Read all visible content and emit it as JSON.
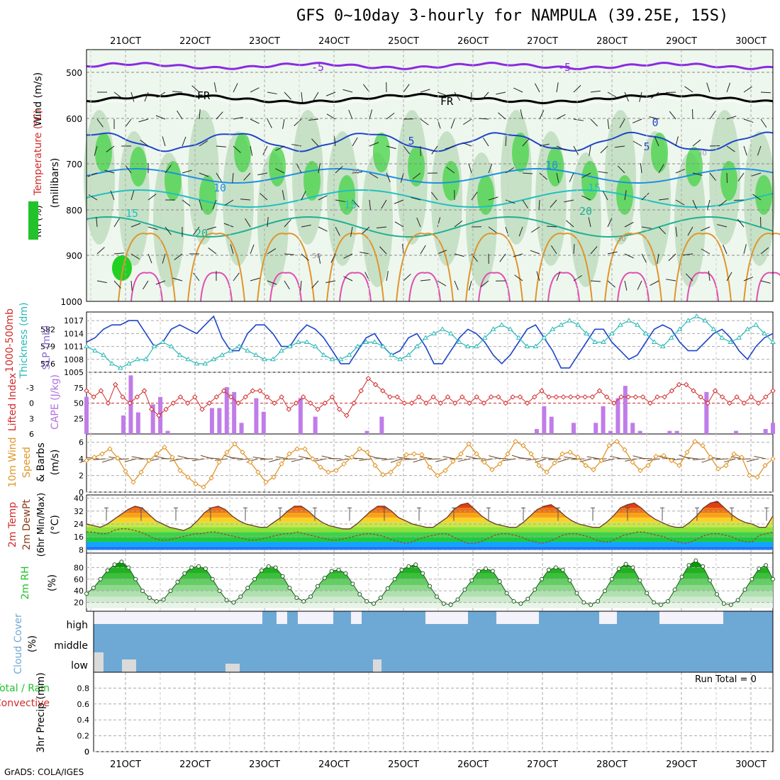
{
  "title": "GFS 0~10day 3-hourly for NAMPULA (39.25E, 15S)",
  "credit": "GrADS: COLA/IGES",
  "dates": [
    "21OCT",
    "22OCT",
    "23OCT",
    "24OCT",
    "25OCT",
    "26OCT",
    "27OCT",
    "28OCT",
    "29OCT",
    "30OCT"
  ],
  "labels": {
    "p1_wind": "Wind (m/s)",
    "p1_temp": "Temperature (°C)",
    "p1_rh": "RH (%)",
    "p1_mb": "(millibars)",
    "p2_thick": "1000-500mb",
    "p2_thick2": "Thickness (dm)",
    "p2_slp": "SLP (mb)",
    "p3_li": "Lifted Index",
    "p3_cape": "CAPE (J/kg)",
    "p4_wind": "10m Wind",
    "p4_speed": "Speed",
    "p4_barbs": "& Barbs",
    "p4_unit": "(m/s)",
    "p5_t1": "2m Temp",
    "p5_t2": "2m DewPt",
    "p5_t3": "(6hr Min/Max)",
    "p5_unit": "(°C)",
    "p6_rh": "2m RH",
    "p6_unit": "(%)",
    "p7_cloud": "Cloud Cover",
    "p7_unit": "(%)",
    "p7_high": "high",
    "p7_middle": "middle",
    "p7_low": "low",
    "p8_a": "Total / Rain",
    "p8_b": "Convective",
    "p8_c": "3hr Precip (mm)",
    "run_total": "Run Total = 0"
  },
  "colors": {
    "purple": "#8a2be2",
    "blue": "#1e46c8",
    "cyan": "#2ab8b8",
    "orange": "#e0952a",
    "green": "#22c22a",
    "cloud": "#6ea9d6",
    "red": "#d12a2a"
  },
  "chart_data": [
    {
      "panel": "vertical profile",
      "type": "contour",
      "yaxis": {
        "label": "(millibars)",
        "ticks": [
          500,
          600,
          700,
          800,
          900,
          1000
        ]
      },
      "isotherm_labels": [
        "-5",
        "FR",
        "0",
        "5",
        "10",
        "15",
        "20"
      ],
      "rh_labels": [
        "30",
        "50"
      ]
    },
    {
      "panel": "thickness_slp",
      "type": "line",
      "thickness_ticks": [
        576,
        579,
        582
      ],
      "slp_ticks": [
        1005,
        1008,
        1011,
        1014,
        1017
      ],
      "ylim": [
        1005,
        1019
      ],
      "slp": [
        1012,
        1013,
        1015,
        1016,
        1016,
        1017,
        1017,
        1014,
        1011,
        1012,
        1015,
        1016,
        1015,
        1014,
        1016,
        1018,
        1013,
        1010,
        1010,
        1014,
        1016,
        1016,
        1014,
        1011,
        1011,
        1014,
        1016,
        1015,
        1013,
        1010,
        1007,
        1007,
        1010,
        1013,
        1014,
        1011,
        1009,
        1010,
        1013,
        1014,
        1011,
        1007,
        1007,
        1010,
        1013,
        1015,
        1014,
        1012,
        1009,
        1007,
        1009,
        1012,
        1015,
        1016,
        1013,
        1010,
        1006,
        1006,
        1009,
        1012,
        1015,
        1015,
        1012,
        1010,
        1008,
        1009,
        1012,
        1015,
        1016,
        1015,
        1012,
        1010,
        1010,
        1012,
        1014,
        1015,
        1013,
        1010,
        1008,
        1011,
        1013,
        1014
      ],
      "thickness_slp_scale": [
        1011,
        1010,
        1009,
        1007,
        1006,
        1007,
        1008,
        1008,
        1011,
        1012,
        1011,
        1009,
        1008,
        1007,
        1007,
        1008,
        1009,
        1010,
        1011,
        1010,
        1009,
        1008,
        1008,
        1010,
        1011,
        1012,
        1012,
        1011,
        1009,
        1008,
        1008,
        1009,
        1011,
        1012,
        1012,
        1011,
        1009,
        1008,
        1009,
        1011,
        1013,
        1014,
        1015,
        1014,
        1012,
        1011,
        1011,
        1013,
        1015,
        1016,
        1015,
        1013,
        1011,
        1011,
        1013,
        1015,
        1016,
        1017,
        1016,
        1014,
        1012,
        1012,
        1014,
        1016,
        1017,
        1016,
        1014,
        1012,
        1011,
        1013,
        1015,
        1017,
        1018,
        1017,
        1015,
        1013,
        1012,
        1013,
        1015,
        1016,
        1014,
        1012
      ]
    },
    {
      "panel": "cape_li",
      "type": "bar",
      "cape_ticks": [
        25,
        50,
        75
      ],
      "li_ticks": [
        -3,
        0,
        3,
        6
      ],
      "cape": [
        60,
        0,
        0,
        0,
        0,
        30,
        95,
        35,
        0,
        48,
        60,
        5,
        0,
        0,
        0,
        0,
        0,
        42,
        42,
        76,
        68,
        18,
        0,
        58,
        36,
        0,
        0,
        0,
        0,
        58,
        0,
        28,
        0,
        0,
        0,
        0,
        0,
        0,
        5,
        0,
        28,
        0,
        0,
        0,
        0,
        0,
        0,
        0,
        0,
        0,
        0,
        0,
        0,
        0,
        0,
        0,
        0,
        0,
        0,
        0,
        0,
        8,
        45,
        28,
        0,
        0,
        18,
        0,
        0,
        18,
        45,
        5,
        58,
        78,
        18,
        5,
        0,
        0,
        0,
        5,
        5,
        0,
        0,
        0,
        68,
        0,
        0,
        0,
        5,
        0,
        0,
        0,
        8,
        18
      ],
      "li": [
        2,
        3,
        2,
        4,
        1,
        3,
        4,
        3,
        2,
        5,
        6,
        5,
        4,
        3,
        4,
        3,
        5,
        4,
        3,
        2,
        3,
        4,
        3,
        2,
        2,
        3,
        4,
        3,
        5,
        4,
        3,
        4,
        5,
        4,
        3,
        5,
        6,
        4,
        2,
        0,
        1,
        2,
        3,
        3,
        4,
        4,
        3,
        4,
        3,
        4,
        3,
        4,
        3,
        4,
        3,
        4,
        3,
        3,
        4,
        3,
        3,
        4,
        3,
        2,
        3,
        3,
        3,
        3,
        3,
        3,
        3,
        2,
        3,
        4,
        3,
        3,
        3,
        3,
        4,
        3,
        3,
        2,
        1,
        1,
        2,
        3,
        4,
        2,
        3,
        4,
        3,
        4,
        3,
        4,
        3,
        2
      ]
    },
    {
      "panel": "10m_wind",
      "type": "line",
      "yaxis": {
        "label": "(m/s)",
        "ticks": [
          0,
          2,
          4,
          6
        ]
      },
      "speed": [
        3.8,
        4.2,
        4.6,
        5.2,
        4.1,
        2.5,
        1.2,
        2.4,
        3.8,
        4.6,
        5.4,
        4.2,
        2.6,
        1.8,
        1.0,
        0.6,
        1.7,
        3.6,
        4.8,
        5.8,
        4.8,
        3.6,
        2.4,
        1.2,
        1.8,
        3.4,
        4.6,
        5.2,
        5.2,
        4.0,
        3.0,
        2.4,
        2.6,
        3.4,
        4.2,
        5.2,
        4.8,
        3.2,
        2.1,
        2.4,
        3.4,
        4.5,
        4.6,
        4.5,
        3.0,
        2.0,
        2.6,
        3.7,
        4.6,
        5.8,
        4.6,
        3.6,
        2.7,
        3.4,
        4.6,
        6.1,
        5.6,
        4.6,
        3.2,
        2.4,
        3.5,
        4.6,
        4.8,
        4.2,
        3.2,
        2.7,
        3.8,
        5.6,
        6.1,
        5.1,
        3.6,
        2.6,
        3.2,
        4.3,
        4.4,
        3.8,
        3.2,
        4.8,
        6.1,
        5.6,
        4.2,
        2.8,
        3.2,
        4.6,
        4.2,
        2.0,
        1.8,
        3.2,
        4.0
      ]
    },
    {
      "panel": "2m_temp",
      "type": "area",
      "yaxis": {
        "label": "(°C)",
        "ticks": [
          8,
          16,
          24,
          32,
          40
        ]
      },
      "temp": [
        24,
        23,
        22,
        24,
        27,
        30,
        33,
        35,
        34,
        30,
        26,
        24,
        22,
        21,
        20,
        22,
        26,
        31,
        34,
        35,
        33,
        29,
        26,
        24,
        23,
        22,
        22,
        25,
        28,
        32,
        35,
        35,
        32,
        28,
        25,
        23,
        22,
        21,
        21,
        24,
        28,
        32,
        35,
        35,
        32,
        28,
        26,
        24,
        23,
        22,
        22,
        25,
        28,
        33,
        36,
        37,
        33,
        29,
        26,
        24,
        23,
        22,
        22,
        25,
        29,
        33,
        35,
        36,
        33,
        29,
        26,
        24,
        23,
        22,
        22,
        25,
        29,
        34,
        36,
        37,
        34,
        30,
        27,
        25,
        23,
        22,
        22,
        25,
        29,
        34,
        37,
        38,
        34,
        30,
        27,
        25,
        24,
        22,
        22,
        29
      ],
      "dewpt": [
        19,
        19,
        18,
        18,
        20,
        21,
        21,
        20,
        19,
        17,
        15,
        14,
        14,
        15,
        16,
        17,
        18,
        18,
        19,
        19,
        18,
        17,
        16,
        15,
        14,
        14,
        15,
        16,
        17,
        18,
        18,
        19,
        18,
        17,
        16,
        15,
        14,
        14,
        15,
        16,
        17,
        18,
        18,
        17,
        16,
        14,
        13,
        12,
        13,
        15,
        16,
        17,
        18,
        18,
        16,
        14,
        12,
        12,
        13,
        15,
        17,
        18,
        18,
        17,
        16,
        14,
        13,
        12,
        13,
        15,
        17,
        18,
        18,
        17,
        16,
        14,
        13,
        13,
        15,
        17,
        18,
        19,
        19,
        18,
        17,
        16,
        14,
        13,
        12,
        13,
        15,
        17,
        18,
        18,
        17,
        16,
        14,
        13,
        13,
        17,
        18,
        19
      ]
    },
    {
      "panel": "2m_rh",
      "type": "area",
      "yaxis": {
        "label": "(%)",
        "ticks": [
          20,
          40,
          60,
          80
        ]
      },
      "rh": [
        35,
        45,
        60,
        75,
        85,
        90,
        80,
        60,
        40,
        28,
        22,
        25,
        40,
        55,
        70,
        80,
        82,
        78,
        60,
        40,
        24,
        20,
        30,
        45,
        60,
        75,
        82,
        80,
        65,
        45,
        28,
        22,
        30,
        48,
        62,
        74,
        76,
        70,
        52,
        34,
        22,
        18,
        28,
        44,
        60,
        76,
        82,
        85,
        70,
        48,
        30,
        18,
        16,
        25,
        42,
        58,
        74,
        78,
        74,
        56,
        36,
        22,
        18,
        26,
        42,
        60,
        76,
        80,
        76,
        58,
        36,
        20,
        16,
        22,
        40,
        60,
        78,
        86,
        80,
        58,
        36,
        20,
        16,
        22,
        42,
        64,
        84,
        92,
        82,
        58,
        34,
        18,
        16,
        24,
        42,
        60,
        78,
        84,
        60
      ]
    },
    {
      "panel": "cloud_cover",
      "type": "heatmap",
      "rows": [
        "high",
        "middle",
        "low"
      ]
    },
    {
      "panel": "3hr_precip",
      "type": "bar",
      "yaxis": {
        "label": "3hr Precip (mm)",
        "ticks": [
          0,
          0.2,
          0.4,
          0.6,
          0.8
        ],
        "ylim": [
          0,
          1
        ]
      },
      "values": []
    }
  ]
}
